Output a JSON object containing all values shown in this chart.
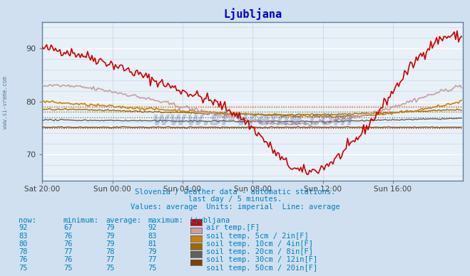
{
  "title": "Ljubljana",
  "subtitle1": "Slovenia / weather data - automatic stations.",
  "subtitle2": "last day / 5 minutes.",
  "subtitle3": "Values: average  Units: imperial  Line: average",
  "bg_color": "#d0e0f0",
  "plot_bg_color": "#e8f0f8",
  "grid_color_major": "#ffffff",
  "grid_color_minor": "#c8d8e8",
  "title_color": "#0000cc",
  "text_color": "#0080c0",
  "watermark": "www.si-vreme.com",
  "ylim": [
    65,
    95
  ],
  "yticks": [
    70,
    80,
    90
  ],
  "series_colors": [
    "#cc0000",
    "#c8a0a0",
    "#c8820a",
    "#a06800",
    "#606060",
    "#804000"
  ],
  "avg_values": [
    79,
    79,
    79,
    78,
    77,
    75
  ],
  "xtick_labels": [
    "Sat 20:00",
    "Sun 00:00",
    "Sun 04:00",
    "Sun 08:00",
    "Sun 12:00",
    "Sun 16:00"
  ],
  "xtick_positions": [
    0,
    48,
    96,
    144,
    192,
    240
  ],
  "n_points": 288,
  "legend_table": {
    "headers": [
      "now:",
      "minimum:",
      "average:",
      "maximum:",
      "Ljubljana"
    ],
    "rows": [
      [
        92,
        67,
        79,
        92,
        "air temp.[F]"
      ],
      [
        83,
        76,
        79,
        83,
        "soil temp. 5cm / 2in[F]"
      ],
      [
        80,
        76,
        79,
        81,
        "soil temp. 10cm / 4in[F]"
      ],
      [
        78,
        77,
        78,
        79,
        "soil temp. 20cm / 8in[F]"
      ],
      [
        76,
        76,
        77,
        77,
        "soil temp. 30cm / 12in[F]"
      ],
      [
        75,
        75,
        75,
        75,
        "soil temp. 50cm / 20in[F]"
      ]
    ],
    "colors": [
      "#cc0000",
      "#c8a0a0",
      "#c8820a",
      "#a06800",
      "#606060",
      "#804000"
    ]
  }
}
